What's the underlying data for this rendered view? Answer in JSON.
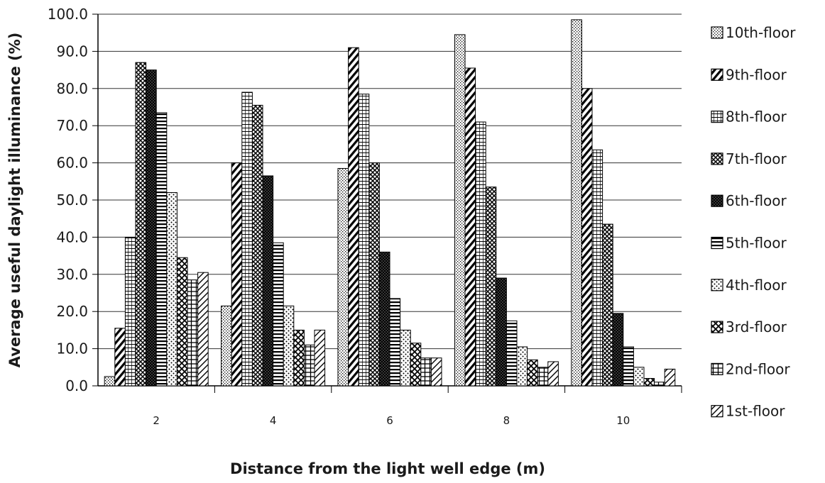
{
  "chart_data": {
    "type": "bar",
    "categories": [
      "2",
      "4",
      "6",
      "8",
      "10"
    ],
    "xlabel": "Distance from the light well edge (m)",
    "ylabel": "Average useful daylight illuminance (%)",
    "ylim": [
      0,
      100
    ],
    "ytick_labels": [
      "0.0",
      "10.0",
      "20.0",
      "30.0",
      "40.0",
      "50.0",
      "60.0",
      "70.0",
      "80.0",
      "90.0",
      "100.0"
    ],
    "grid": "horizontal",
    "legend_position": "right",
    "series": [
      {
        "name": "10th-floor",
        "values": [
          2.5,
          21.5,
          58.5,
          94.5,
          98.5
        ]
      },
      {
        "name": "9th-floor",
        "values": [
          15.5,
          60,
          91,
          85.5,
          80
        ]
      },
      {
        "name": "8th-floor",
        "values": [
          40,
          79,
          78.5,
          71,
          63.5
        ]
      },
      {
        "name": "7th-floor",
        "values": [
          87,
          75.5,
          60,
          53.5,
          43.5
        ]
      },
      {
        "name": "6th-floor",
        "values": [
          85,
          56.5,
          36,
          29,
          19.5
        ]
      },
      {
        "name": "5th-floor",
        "values": [
          73.5,
          38.5,
          23.5,
          17.5,
          10.5
        ]
      },
      {
        "name": "4th-floor",
        "values": [
          52,
          21.5,
          15,
          10.5,
          5
        ]
      },
      {
        "name": "3rd-floor",
        "values": [
          34.5,
          15,
          11.5,
          7,
          2
        ]
      },
      {
        "name": "2nd-floor",
        "values": [
          28.5,
          11,
          7.5,
          5,
          1
        ]
      },
      {
        "name": "1st-floor",
        "values": [
          30.5,
          15,
          7.5,
          6.5,
          4.5
        ]
      }
    ]
  }
}
